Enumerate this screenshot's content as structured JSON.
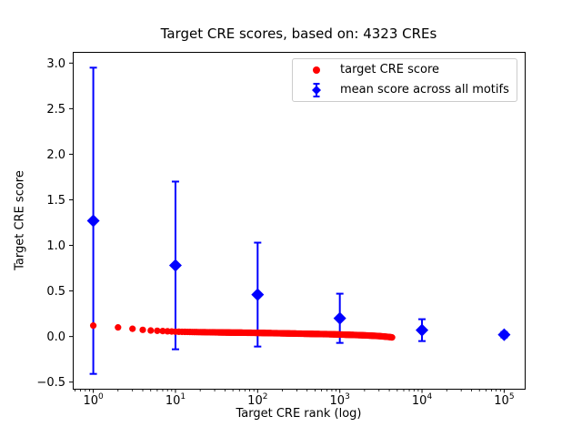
{
  "colors": {
    "target": "#ff0000",
    "mean": "#0000ff",
    "axis": "#000000",
    "background": "#ffffff",
    "legend_border": "#cccccc"
  },
  "chart_data": {
    "type": "scatter",
    "title": "Target CRE scores, based on: 4323 CREs",
    "xlabel": "Target CRE rank (log)",
    "ylabel": "Target CRE score",
    "x_scale": "log",
    "x_log_range": [
      -0.25,
      5.25
    ],
    "ylim": [
      -0.573,
      3.123
    ],
    "x_tick_base": "10",
    "x_tick_exponents": [
      0,
      1,
      2,
      3,
      4,
      5
    ],
    "y_tick_values": [
      -0.5,
      0.0,
      0.5,
      1.0,
      1.5,
      2.0,
      2.5,
      3.0
    ],
    "y_tick_labels": [
      "−0.5",
      "0.0",
      "0.5",
      "1.0",
      "1.5",
      "2.0",
      "2.5",
      "3.0"
    ],
    "grid": false,
    "legend_position": "upper right",
    "series": [
      {
        "name": "target CRE score",
        "type": "scatter",
        "marker": "circle",
        "color": "#ff0000",
        "n_points": 4323,
        "sampled_x": [
          1,
          2,
          3,
          4,
          5,
          7,
          10,
          15,
          20,
          30,
          50,
          70,
          100,
          150,
          200,
          300,
          500,
          700,
          1000,
          1500,
          2000,
          3000,
          4000,
          4323
        ],
        "sampled_y": [
          0.12,
          0.1,
          0.085,
          0.073,
          0.066,
          0.06,
          0.053,
          0.05,
          0.048,
          0.046,
          0.043,
          0.042,
          0.04,
          0.037,
          0.035,
          0.032,
          0.028,
          0.026,
          0.022,
          0.017,
          0.013,
          0.005,
          -0.005,
          -0.01
        ]
      },
      {
        "name": "mean score across all motifs",
        "type": "scatter-errorbar",
        "marker": "diamond",
        "color": "#0000ff",
        "x": [
          1,
          10,
          100,
          1000,
          10000,
          100000
        ],
        "y": [
          1.27,
          0.78,
          0.46,
          0.2,
          0.07,
          0.02
        ],
        "yerr": [
          1.68,
          0.92,
          0.57,
          0.27,
          0.12,
          0.03
        ]
      }
    ]
  }
}
